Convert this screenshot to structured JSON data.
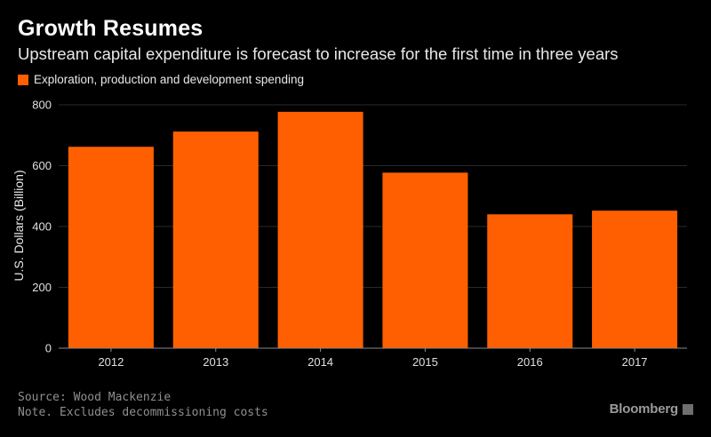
{
  "header": {
    "title": "Growth Resumes",
    "subtitle": "Upstream capital expenditure is forecast to increase for the first time in three years"
  },
  "legend": {
    "label": "Exploration, production and development spending"
  },
  "footer": {
    "source": "Source: Wood Mackenzie",
    "note": "Note. Excludes decommissioning costs",
    "brand": "Bloomberg"
  },
  "colors": {
    "bar": "#ff5f00",
    "background": "#000000",
    "grid": "#2a2a2a",
    "axis": "#8a8a8a"
  },
  "icons": {
    "brand_mark": "bloomberg-chart-icon"
  },
  "chart_data": {
    "type": "bar",
    "categories": [
      "2012",
      "2013",
      "2014",
      "2015",
      "2016",
      "2017"
    ],
    "series": [
      {
        "name": "Exploration, production and development spending",
        "values": [
          662,
          712,
          777,
          577,
          440,
          452
        ]
      }
    ],
    "ylabel": "U.S. Dollars (Billion)",
    "ylim": [
      0,
      800
    ],
    "yticks": [
      0,
      200,
      400,
      600,
      800
    ],
    "grid": true,
    "legend_position": "top-left"
  }
}
